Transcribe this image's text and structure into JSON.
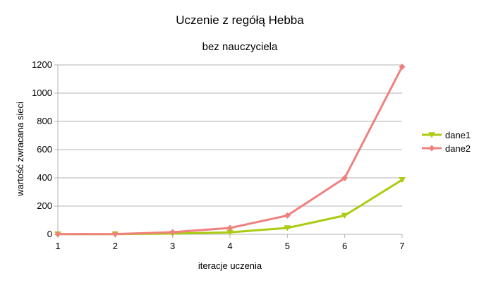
{
  "chart_data": {
    "type": "line",
    "title": "Uczenie z regółą Hebba",
    "subtitle": "bez nauczyciela",
    "xlabel": "iteracje uczenia",
    "ylabel": "wartość zwracana sieci",
    "x": [
      1,
      2,
      3,
      4,
      5,
      6,
      7
    ],
    "xlim": [
      1,
      7
    ],
    "ylim": [
      0,
      1200
    ],
    "yticks": [
      0,
      200,
      400,
      600,
      800,
      1000,
      1200
    ],
    "grid": "horizontal",
    "legend": "right",
    "series": [
      {
        "name": "dane1",
        "color": "#aacc11",
        "marker": "triangle-down-icon",
        "values": [
          1,
          1,
          5,
          14,
          45,
          133,
          386
        ]
      },
      {
        "name": "dane2",
        "color": "#f08080",
        "marker": "diamond-icon",
        "values": [
          1,
          2,
          15,
          45,
          133,
          399,
          1187
        ]
      }
    ]
  }
}
